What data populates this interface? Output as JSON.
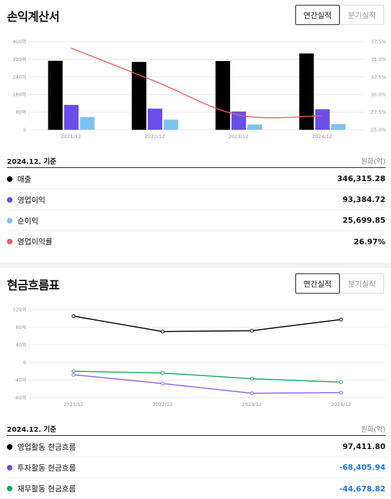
{
  "income": {
    "title": "손익계산서",
    "toggle": {
      "annual": "연간실적",
      "quarterly": "분기실적"
    },
    "basis": "2024.12. 기준",
    "unit": "원화(억)",
    "rows": [
      {
        "label": "매출",
        "value": "346,315.28",
        "color": "#000000"
      },
      {
        "label": "영업이익",
        "value": "93,384.72",
        "color": "#6a4ee8"
      },
      {
        "label": "순이익",
        "value": "25,699.85",
        "color": "#7ec3f0"
      },
      {
        "label": "영업이익률",
        "value": "26.97%",
        "color": "#ef5b5b"
      }
    ]
  },
  "cashflow": {
    "title": "현금흐름표",
    "toggle": {
      "annual": "연간실적",
      "quarterly": "분기실적"
    },
    "basis": "2024.12. 기준",
    "unit": "원화(억)",
    "rows": [
      {
        "label": "영업활동 현금흐름",
        "value": "97,411.80",
        "color": "#000000",
        "negative": false
      },
      {
        "label": "투자활동 현금흐름",
        "value": "-68,405.94",
        "color": "#6a4ee8",
        "negative": true
      },
      {
        "label": "재무활동 현금흐름",
        "value": "-44,678.82",
        "color": "#1aaa5a",
        "negative": true
      }
    ]
  },
  "chart_data": [
    {
      "type": "bar",
      "categories": [
        "2021/12",
        "2022/12",
        "2023/12",
        "2024/12"
      ],
      "left_ticks": [
        "400억",
        "320억",
        "240억",
        "160억",
        "80억",
        "0"
      ],
      "right_ticks": [
        "37.5%",
        "35.0%",
        "32.5%",
        "30.0%",
        "27.5%",
        "25.0%"
      ],
      "ylim": [
        0,
        400000
      ],
      "y2lim": [
        25.0,
        37.5
      ],
      "series": [
        {
          "name": "매출",
          "color": "#000000",
          "values": [
            313000,
            308000,
            312000,
            346315.28
          ]
        },
        {
          "name": "영업이익",
          "color": "#6a4ee8",
          "values": [
            113000,
            96000,
            83000,
            93384.72
          ]
        },
        {
          "name": "순이익",
          "color": "#7ec3f0",
          "values": [
            58000,
            46000,
            24000,
            25699.85
          ]
        }
      ],
      "line_series": {
        "name": "영업이익률",
        "color": "#ef5b5b",
        "values": [
          36.6,
          31.9,
          27.1,
          26.97
        ]
      },
      "grid": true
    },
    {
      "type": "line",
      "categories": [
        "2021/12",
        "2022/12",
        "2023/12",
        "2024/12"
      ],
      "left_ticks": [
        "120억",
        "80억",
        "40억",
        "0",
        "-40억",
        "-80억"
      ],
      "ylim": [
        -80000,
        120000
      ],
      "series": [
        {
          "name": "영업활동 현금흐름",
          "color": "#000000",
          "values": [
            105000,
            70000,
            72000,
            97411.8
          ]
        },
        {
          "name": "투자활동 현금흐름",
          "color": "#8a66f0",
          "values": [
            -28000,
            -48000,
            -70000,
            -68405.94
          ]
        },
        {
          "name": "재무활동 현금흐름",
          "color": "#1aaa5a",
          "values": [
            -20000,
            -24000,
            -37000,
            -44678.82
          ]
        }
      ],
      "grid": true
    }
  ]
}
